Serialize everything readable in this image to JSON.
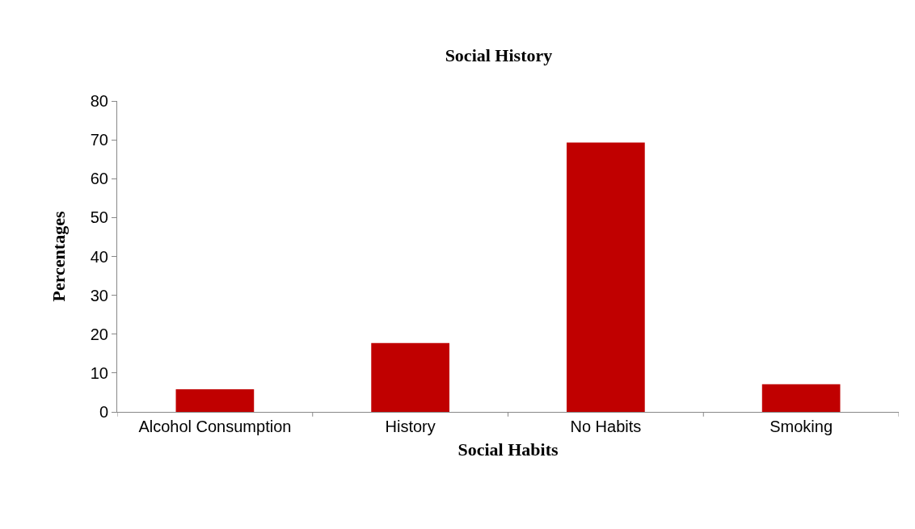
{
  "chart_data": {
    "type": "bar",
    "title": "Social History",
    "xlabel": "Social Habits",
    "ylabel": "Percentages",
    "categories": [
      "Alcohol Consumption",
      "History",
      "No Habits",
      "Smoking"
    ],
    "values": [
      5.8,
      17.7,
      69.3,
      7.1
    ],
    "color": "#c00000",
    "ylim": [
      0,
      80
    ],
    "yticks": [
      0,
      10,
      20,
      30,
      40,
      50,
      60,
      70,
      80
    ]
  }
}
